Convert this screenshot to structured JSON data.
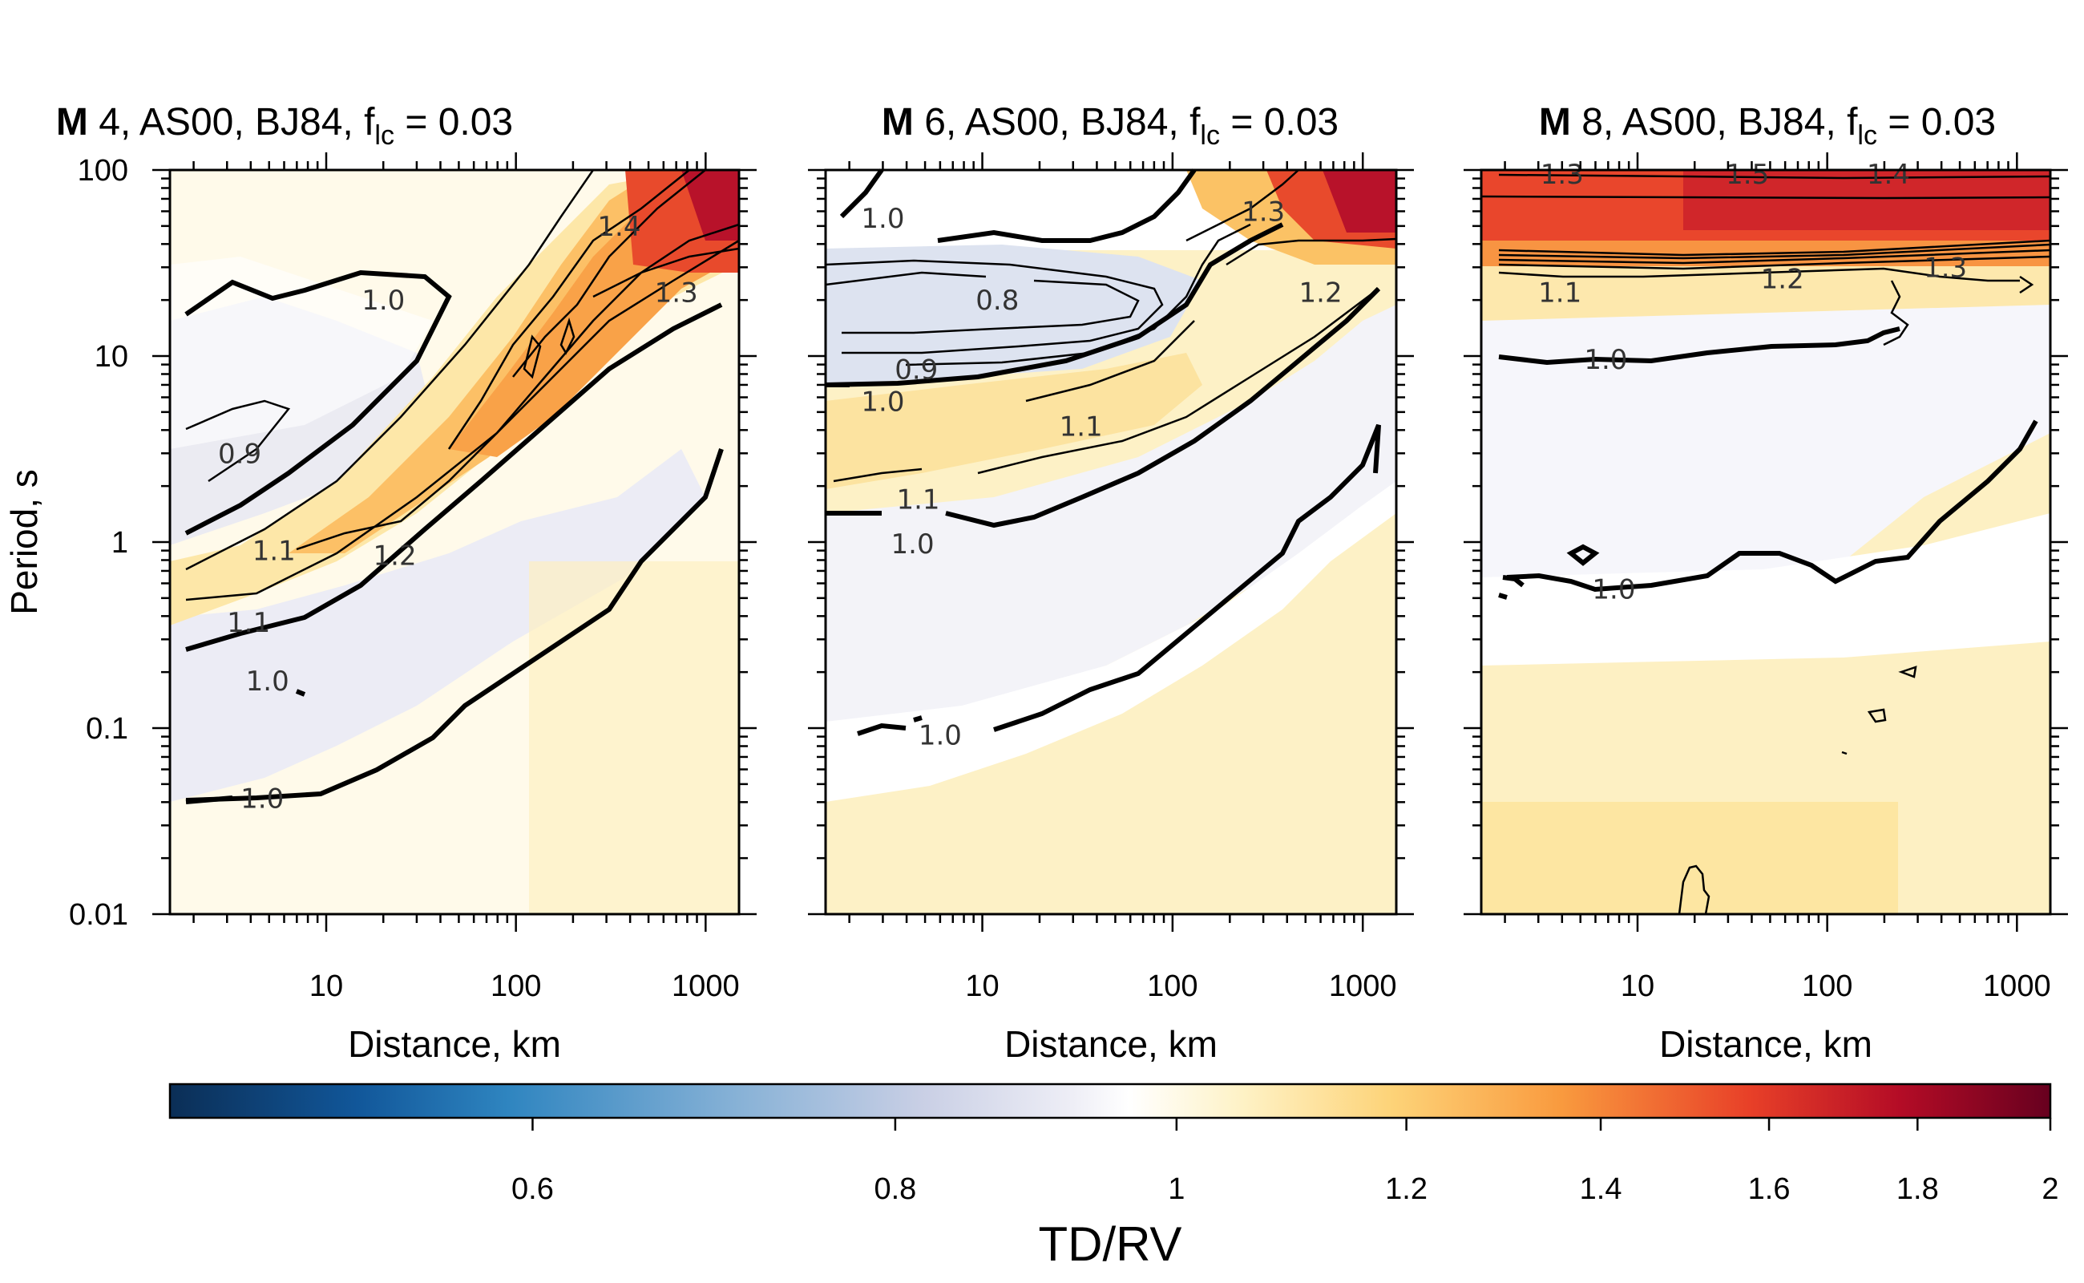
{
  "chart_data": {
    "type": "heatmap",
    "shared": {
      "xlabel": "Distance, km",
      "ylabel": "Period, s",
      "x_scale": "log",
      "y_scale": "log",
      "xlim": [
        1.5,
        1500
      ],
      "ylim": [
        0.01,
        100
      ],
      "x_tick_labels": [
        "10",
        "100",
        "1000"
      ],
      "y_tick_labels": [
        "0.01",
        "0.1",
        "1",
        "10",
        "100"
      ],
      "colorbar": {
        "label": "TD/RV",
        "range": [
          0.45,
          2.0
        ],
        "tick_labels": [
          "0.6",
          "0.8",
          "1",
          "1.2",
          "1.4",
          "1.6",
          "1.8",
          "2"
        ],
        "ticks": [
          0.6,
          0.8,
          1.0,
          1.2,
          1.4,
          1.6,
          1.8,
          2.0
        ],
        "colors": [
          "#0b2e56",
          "#1268ad",
          "#86b1d6",
          "#dcdcec",
          "#ffffff",
          "#fef2c6",
          "#fdd378",
          "#f99a3e",
          "#e84028",
          "#a50426",
          "#67001f"
        ]
      }
    },
    "panels": [
      {
        "title_bold": "M",
        "title_rest": " 4, AS00, BJ84, f",
        "title_sub": "lc",
        "title_end": " = 0.03",
        "contour_labels": [
          {
            "text": "1.0",
            "x": 20,
            "y": 20
          },
          {
            "text": "0.9",
            "x": 3.5,
            "y": 3.0
          },
          {
            "text": "1.1",
            "x": 5.3,
            "y": 0.9
          },
          {
            "text": "1.2",
            "x": 23,
            "y": 0.85
          },
          {
            "text": "1.1",
            "x": 3.9,
            "y": 0.37
          },
          {
            "text": "1.0",
            "x": 4.9,
            "y": 0.18
          },
          {
            "text": "1.0",
            "x": 4.6,
            "y": 0.042
          },
          {
            "text": "1.4",
            "x": 350,
            "y": 50
          },
          {
            "text": "1.3",
            "x": 700,
            "y": 22
          }
        ]
      },
      {
        "title_bold": "M",
        "title_rest": " 6, AS00, BJ84, f",
        "title_sub": "lc",
        "title_end": " = 0.03",
        "contour_labels": [
          {
            "text": "1.0",
            "x": 3.0,
            "y": 55
          },
          {
            "text": "0.8",
            "x": 12,
            "y": 20
          },
          {
            "text": "0.9",
            "x": 4.5,
            "y": 8.5
          },
          {
            "text": "1.0",
            "x": 3.0,
            "y": 5.7
          },
          {
            "text": "1.1",
            "x": 33,
            "y": 4.2
          },
          {
            "text": "1.1",
            "x": 4.6,
            "y": 1.7
          },
          {
            "text": "1.0",
            "x": 4.3,
            "y": 0.98
          },
          {
            "text": "1.0",
            "x": 6.0,
            "y": 0.092
          },
          {
            "text": "1.2",
            "x": 600,
            "y": 22
          },
          {
            "text": "1.3",
            "x": 300,
            "y": 60
          }
        ]
      },
      {
        "title_bold": "M",
        "title_rest": " 8, AS00, BJ84, f",
        "title_sub": "lc",
        "title_end": " = 0.03",
        "contour_labels": [
          {
            "text": "1.3",
            "x": 4.0,
            "y": 95
          },
          {
            "text": "1.5",
            "x": 38,
            "y": 95
          },
          {
            "text": "1.4",
            "x": 210,
            "y": 95
          },
          {
            "text": "1.1",
            "x": 3.9,
            "y": 22
          },
          {
            "text": "1.2",
            "x": 58,
            "y": 26
          },
          {
            "text": "1.3",
            "x": 420,
            "y": 30
          },
          {
            "text": "1.0",
            "x": 6.8,
            "y": 9.6
          },
          {
            "text": "1.0",
            "x": 7.5,
            "y": 0.56
          }
        ]
      }
    ]
  }
}
